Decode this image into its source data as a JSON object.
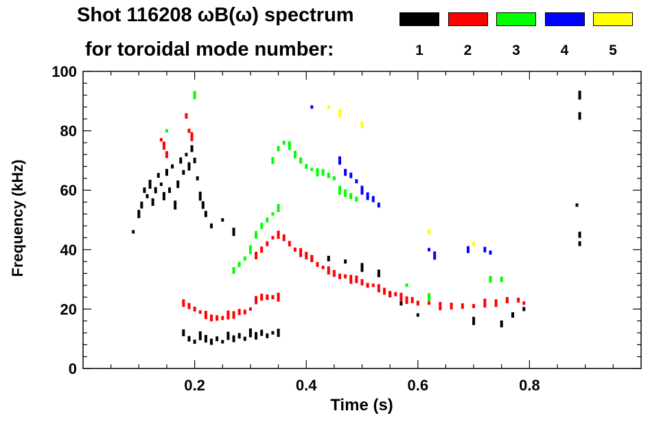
{
  "header": {
    "title_line1": "Shot 116208 ωB(ω) spectrum",
    "title_line2": "for toroidal mode number:"
  },
  "chart_data": {
    "type": "scatter",
    "xlabel": "Time (s)",
    "ylabel": "Frequency (kHz)",
    "xlim": [
      0.0,
      1.0
    ],
    "ylim": [
      0,
      100
    ],
    "x_ticks": [
      0.2,
      0.4,
      0.6,
      0.8
    ],
    "x_tick_labels": [
      "0.2",
      "0.4",
      "0.6",
      "0.8"
    ],
    "y_ticks": [
      0,
      20,
      40,
      60,
      80,
      100
    ],
    "y_tick_labels": [
      "0",
      "20",
      "40",
      "60",
      "80",
      "100"
    ],
    "grid": false,
    "legend_position": "top-right",
    "series": [
      {
        "name": "1",
        "color": "#000000",
        "points": [
          [
            0.09,
            46
          ],
          [
            0.1,
            52
          ],
          [
            0.105,
            55
          ],
          [
            0.11,
            60
          ],
          [
            0.115,
            58
          ],
          [
            0.12,
            62
          ],
          [
            0.125,
            56
          ],
          [
            0.13,
            60
          ],
          [
            0.135,
            65
          ],
          [
            0.14,
            62
          ],
          [
            0.145,
            58
          ],
          [
            0.15,
            66
          ],
          [
            0.155,
            60
          ],
          [
            0.16,
            68
          ],
          [
            0.165,
            55
          ],
          [
            0.17,
            62
          ],
          [
            0.175,
            70
          ],
          [
            0.18,
            66
          ],
          [
            0.185,
            72
          ],
          [
            0.19,
            68
          ],
          [
            0.195,
            74
          ],
          [
            0.2,
            70
          ],
          [
            0.205,
            64
          ],
          [
            0.21,
            58
          ],
          [
            0.215,
            55
          ],
          [
            0.22,
            52
          ],
          [
            0.23,
            48
          ],
          [
            0.25,
            50
          ],
          [
            0.27,
            46
          ],
          [
            0.18,
            12
          ],
          [
            0.19,
            10
          ],
          [
            0.2,
            9
          ],
          [
            0.21,
            11
          ],
          [
            0.22,
            10
          ],
          [
            0.23,
            9
          ],
          [
            0.24,
            10
          ],
          [
            0.25,
            9
          ],
          [
            0.26,
            11
          ],
          [
            0.27,
            10
          ],
          [
            0.28,
            11
          ],
          [
            0.29,
            10
          ],
          [
            0.3,
            12
          ],
          [
            0.31,
            11
          ],
          [
            0.32,
            12
          ],
          [
            0.33,
            11
          ],
          [
            0.34,
            12
          ],
          [
            0.35,
            12
          ],
          [
            0.41,
            37
          ],
          [
            0.44,
            37
          ],
          [
            0.47,
            36
          ],
          [
            0.5,
            34
          ],
          [
            0.53,
            32
          ],
          [
            0.55,
            25
          ],
          [
            0.57,
            22
          ],
          [
            0.6,
            18
          ],
          [
            0.7,
            16
          ],
          [
            0.75,
            15
          ],
          [
            0.77,
            18
          ],
          [
            0.79,
            20
          ],
          [
            0.89,
            92
          ],
          [
            0.89,
            85
          ],
          [
            0.89,
            45
          ],
          [
            0.89,
            42
          ],
          [
            0.885,
            55
          ]
        ]
      },
      {
        "name": "2",
        "color": "#ff0000",
        "points": [
          [
            0.14,
            77
          ],
          [
            0.145,
            75
          ],
          [
            0.15,
            72
          ],
          [
            0.185,
            85
          ],
          [
            0.19,
            80
          ],
          [
            0.195,
            78
          ],
          [
            0.18,
            22
          ],
          [
            0.19,
            21
          ],
          [
            0.2,
            20
          ],
          [
            0.21,
            19
          ],
          [
            0.22,
            18
          ],
          [
            0.23,
            17
          ],
          [
            0.24,
            17
          ],
          [
            0.25,
            17
          ],
          [
            0.26,
            18
          ],
          [
            0.27,
            18
          ],
          [
            0.28,
            19
          ],
          [
            0.29,
            19
          ],
          [
            0.3,
            20
          ],
          [
            0.31,
            23
          ],
          [
            0.32,
            24
          ],
          [
            0.33,
            24
          ],
          [
            0.34,
            24
          ],
          [
            0.35,
            24
          ],
          [
            0.31,
            38
          ],
          [
            0.32,
            40
          ],
          [
            0.33,
            42
          ],
          [
            0.34,
            44
          ],
          [
            0.35,
            45
          ],
          [
            0.36,
            44
          ],
          [
            0.37,
            42
          ],
          [
            0.38,
            40
          ],
          [
            0.39,
            39
          ],
          [
            0.4,
            38
          ],
          [
            0.41,
            37
          ],
          [
            0.42,
            35
          ],
          [
            0.43,
            34
          ],
          [
            0.44,
            33
          ],
          [
            0.45,
            32
          ],
          [
            0.46,
            31
          ],
          [
            0.47,
            31
          ],
          [
            0.48,
            30
          ],
          [
            0.49,
            30
          ],
          [
            0.5,
            29
          ],
          [
            0.51,
            28
          ],
          [
            0.52,
            28
          ],
          [
            0.53,
            27
          ],
          [
            0.54,
            26
          ],
          [
            0.55,
            25
          ],
          [
            0.56,
            25
          ],
          [
            0.57,
            24
          ],
          [
            0.58,
            23
          ],
          [
            0.59,
            23
          ],
          [
            0.6,
            22
          ],
          [
            0.62,
            22
          ],
          [
            0.64,
            21
          ],
          [
            0.66,
            21
          ],
          [
            0.68,
            21
          ],
          [
            0.7,
            21
          ],
          [
            0.72,
            22
          ],
          [
            0.74,
            22
          ],
          [
            0.76,
            23
          ],
          [
            0.78,
            23
          ],
          [
            0.79,
            22
          ]
        ]
      },
      {
        "name": "3",
        "color": "#00ff00",
        "points": [
          [
            0.15,
            80
          ],
          [
            0.2,
            92
          ],
          [
            0.27,
            33
          ],
          [
            0.28,
            35
          ],
          [
            0.29,
            37
          ],
          [
            0.3,
            40
          ],
          [
            0.31,
            45
          ],
          [
            0.32,
            48
          ],
          [
            0.33,
            50
          ],
          [
            0.34,
            52
          ],
          [
            0.35,
            54
          ],
          [
            0.34,
            70
          ],
          [
            0.35,
            74
          ],
          [
            0.36,
            76
          ],
          [
            0.37,
            75
          ],
          [
            0.38,
            72
          ],
          [
            0.39,
            70
          ],
          [
            0.4,
            68
          ],
          [
            0.41,
            67
          ],
          [
            0.42,
            66
          ],
          [
            0.43,
            66
          ],
          [
            0.44,
            65
          ],
          [
            0.45,
            64
          ],
          [
            0.46,
            60
          ],
          [
            0.47,
            59
          ],
          [
            0.48,
            58
          ],
          [
            0.49,
            57
          ],
          [
            0.58,
            28
          ],
          [
            0.62,
            24
          ],
          [
            0.73,
            30
          ],
          [
            0.75,
            30
          ]
        ]
      },
      {
        "name": "4",
        "color": "#0000ff",
        "points": [
          [
            0.41,
            88
          ],
          [
            0.46,
            70
          ],
          [
            0.47,
            66
          ],
          [
            0.48,
            65
          ],
          [
            0.49,
            63
          ],
          [
            0.5,
            60
          ],
          [
            0.51,
            58
          ],
          [
            0.52,
            57
          ],
          [
            0.53,
            55
          ],
          [
            0.62,
            40
          ],
          [
            0.63,
            38
          ],
          [
            0.69,
            40
          ],
          [
            0.72,
            40
          ],
          [
            0.73,
            39
          ]
        ]
      },
      {
        "name": "5",
        "color": "#ffff00",
        "points": [
          [
            0.44,
            88
          ],
          [
            0.46,
            86
          ],
          [
            0.5,
            82
          ],
          [
            0.62,
            46
          ],
          [
            0.7,
            42
          ]
        ]
      }
    ]
  }
}
